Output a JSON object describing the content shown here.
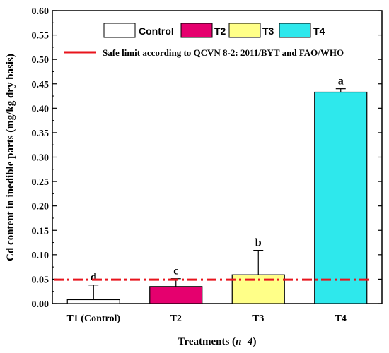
{
  "chart_data": {
    "type": "bar",
    "categories": [
      "T1 (Control)",
      "T2",
      "T3",
      "T4"
    ],
    "values": [
      0.008,
      0.035,
      0.059,
      0.433
    ],
    "errors": [
      0.03,
      0.016,
      0.05,
      0.007
    ],
    "significance_letters": [
      "d",
      "c",
      "b",
      "a"
    ],
    "bar_colors": [
      "#ffffff",
      "#e5006e",
      "#ffff88",
      "#2ee8ec"
    ],
    "ylabel": "Cd content in inedible parts (mg/kg dry basis)",
    "xlabel_prefix": "Treatments (",
    "xlabel_italic": "n=4",
    "xlabel_suffix": ")",
    "ylim": [
      0,
      0.6
    ],
    "yticks": [
      "0.00",
      "0.05",
      "0.10",
      "0.15",
      "0.20",
      "0.25",
      "0.30",
      "0.35",
      "0.40",
      "0.45",
      "0.50",
      "0.55",
      "0.60"
    ],
    "legend": {
      "entries": [
        "Control",
        "T2",
        "T3",
        "T4"
      ],
      "reference_line_label": "Safe limit according to QCVN 8-2: 2011/BYT and FAO/WHO",
      "placement": "top"
    },
    "reference_line": {
      "value": 0.049,
      "color": "#e8141c",
      "style": "dash-dot"
    }
  }
}
